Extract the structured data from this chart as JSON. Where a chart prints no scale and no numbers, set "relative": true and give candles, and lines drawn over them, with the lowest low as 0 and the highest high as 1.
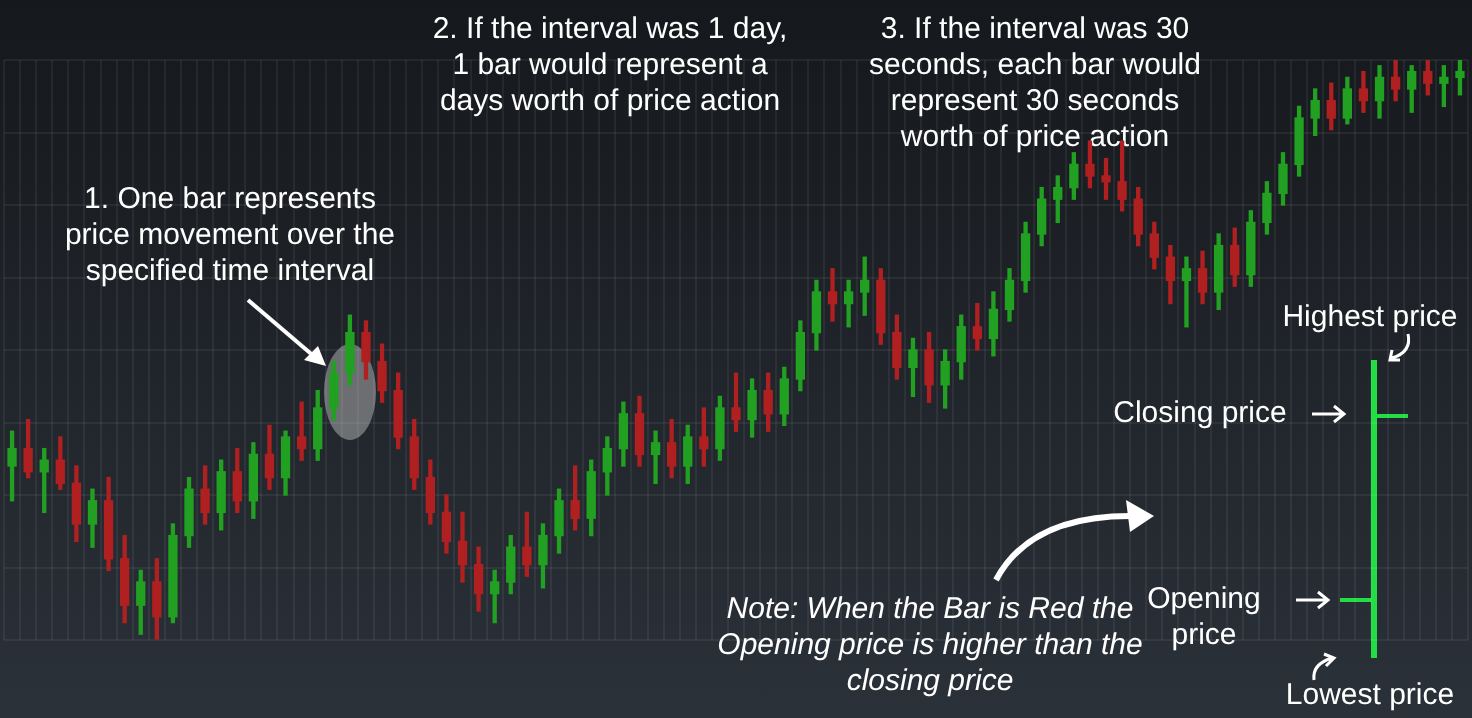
{
  "chart_data": {
    "type": "candlestick",
    "relative": true,
    "grid": true,
    "tick_labels": false,
    "categories": [
      null,
      null,
      null,
      null,
      null,
      null,
      null,
      null,
      null,
      null,
      null,
      null,
      null,
      null,
      null,
      null,
      null,
      null,
      null,
      null,
      null,
      null,
      null,
      null,
      null,
      null,
      null,
      null,
      null,
      null,
      null,
      null,
      null,
      null,
      null,
      null,
      null,
      null,
      null,
      null,
      null,
      null,
      null,
      null,
      null,
      null,
      null,
      null,
      null,
      null,
      null,
      null,
      null,
      null,
      null,
      null,
      null,
      null,
      null,
      null,
      null,
      null,
      null,
      null,
      null,
      null,
      null,
      null,
      null,
      null,
      null,
      null,
      null,
      null,
      null,
      null,
      null,
      null,
      null,
      null,
      null,
      null,
      null,
      null,
      null,
      null,
      null,
      null,
      null,
      null,
      null
    ],
    "ohlc": [
      [
        0.3,
        0.36,
        0.24,
        0.33
      ],
      [
        0.33,
        0.38,
        0.28,
        0.29
      ],
      [
        0.29,
        0.33,
        0.22,
        0.31
      ],
      [
        0.31,
        0.35,
        0.26,
        0.27
      ],
      [
        0.27,
        0.3,
        0.17,
        0.2
      ],
      [
        0.2,
        0.26,
        0.16,
        0.24
      ],
      [
        0.24,
        0.28,
        0.12,
        0.14
      ],
      [
        0.14,
        0.18,
        0.03,
        0.06
      ],
      [
        0.06,
        0.12,
        0.01,
        0.1
      ],
      [
        0.1,
        0.14,
        0,
        0.04
      ],
      [
        0.04,
        0.2,
        0.03,
        0.18
      ],
      [
        0.18,
        0.28,
        0.16,
        0.26
      ],
      [
        0.26,
        0.3,
        0.2,
        0.22
      ],
      [
        0.22,
        0.31,
        0.19,
        0.29
      ],
      [
        0.29,
        0.33,
        0.22,
        0.24
      ],
      [
        0.24,
        0.34,
        0.21,
        0.32
      ],
      [
        0.32,
        0.37,
        0.26,
        0.28
      ],
      [
        0.28,
        0.36,
        0.25,
        0.35
      ],
      [
        0.35,
        0.41,
        0.31,
        0.33
      ],
      [
        0.33,
        0.43,
        0.31,
        0.4
      ],
      [
        0.4,
        0.48,
        0.38,
        0.46
      ],
      [
        0.46,
        0.56,
        0.44,
        0.53
      ],
      [
        0.53,
        0.55,
        0.45,
        0.48
      ],
      [
        0.48,
        0.51,
        0.41,
        0.43
      ],
      [
        0.43,
        0.46,
        0.33,
        0.35
      ],
      [
        0.35,
        0.38,
        0.26,
        0.28
      ],
      [
        0.28,
        0.31,
        0.2,
        0.22
      ],
      [
        0.22,
        0.25,
        0.15,
        0.17
      ],
      [
        0.17,
        0.22,
        0.1,
        0.13
      ],
      [
        0.13,
        0.16,
        0.05,
        0.08
      ],
      [
        0.08,
        0.12,
        0.03,
        0.1
      ],
      [
        0.1,
        0.18,
        0.08,
        0.16
      ],
      [
        0.16,
        0.22,
        0.11,
        0.13
      ],
      [
        0.13,
        0.2,
        0.09,
        0.18
      ],
      [
        0.18,
        0.26,
        0.15,
        0.24
      ],
      [
        0.24,
        0.3,
        0.19,
        0.21
      ],
      [
        0.21,
        0.31,
        0.18,
        0.29
      ],
      [
        0.29,
        0.35,
        0.25,
        0.33
      ],
      [
        0.33,
        0.41,
        0.3,
        0.39
      ],
      [
        0.39,
        0.42,
        0.3,
        0.32
      ],
      [
        0.32,
        0.36,
        0.27,
        0.34
      ],
      [
        0.34,
        0.38,
        0.28,
        0.3
      ],
      [
        0.3,
        0.37,
        0.27,
        0.35
      ],
      [
        0.35,
        0.4,
        0.3,
        0.33
      ],
      [
        0.33,
        0.42,
        0.31,
        0.4
      ],
      [
        0.4,
        0.46,
        0.36,
        0.38
      ],
      [
        0.38,
        0.45,
        0.35,
        0.43
      ],
      [
        0.43,
        0.46,
        0.36,
        0.39
      ],
      [
        0.39,
        0.47,
        0.37,
        0.45
      ],
      [
        0.45,
        0.55,
        0.43,
        0.53
      ],
      [
        0.53,
        0.62,
        0.5,
        0.6
      ],
      [
        0.6,
        0.64,
        0.55,
        0.58
      ],
      [
        0.58,
        0.62,
        0.54,
        0.6
      ],
      [
        0.6,
        0.66,
        0.56,
        0.62
      ],
      [
        0.62,
        0.64,
        0.51,
        0.53
      ],
      [
        0.53,
        0.56,
        0.45,
        0.47
      ],
      [
        0.47,
        0.52,
        0.42,
        0.5
      ],
      [
        0.5,
        0.53,
        0.41,
        0.44
      ],
      [
        0.44,
        0.5,
        0.4,
        0.48
      ],
      [
        0.48,
        0.56,
        0.45,
        0.54
      ],
      [
        0.54,
        0.58,
        0.5,
        0.52
      ],
      [
        0.52,
        0.6,
        0.49,
        0.57
      ],
      [
        0.57,
        0.64,
        0.55,
        0.62
      ],
      [
        0.62,
        0.72,
        0.6,
        0.7
      ],
      [
        0.7,
        0.78,
        0.68,
        0.76
      ],
      [
        0.76,
        0.8,
        0.72,
        0.78
      ],
      [
        0.78,
        0.84,
        0.76,
        0.82
      ],
      [
        0.82,
        0.86,
        0.78,
        0.8
      ],
      [
        0.8,
        0.83,
        0.76,
        0.79
      ],
      [
        0.79,
        0.86,
        0.74,
        0.76
      ],
      [
        0.76,
        0.78,
        0.68,
        0.7
      ],
      [
        0.7,
        0.72,
        0.64,
        0.66
      ],
      [
        0.66,
        0.68,
        0.58,
        0.62
      ],
      [
        0.62,
        0.66,
        0.54,
        0.64
      ],
      [
        0.64,
        0.67,
        0.58,
        0.6
      ],
      [
        0.6,
        0.7,
        0.57,
        0.68
      ],
      [
        0.68,
        0.71,
        0.61,
        0.63
      ],
      [
        0.63,
        0.74,
        0.61,
        0.72
      ],
      [
        0.72,
        0.79,
        0.7,
        0.77
      ],
      [
        0.77,
        0.84,
        0.75,
        0.82
      ],
      [
        0.82,
        0.92,
        0.8,
        0.9
      ],
      [
        0.9,
        0.95,
        0.87,
        0.93
      ],
      [
        0.93,
        0.96,
        0.88,
        0.9
      ],
      [
        0.9,
        0.97,
        0.89,
        0.95
      ],
      [
        0.95,
        0.98,
        0.91,
        0.93
      ],
      [
        0.93,
        0.99,
        0.9,
        0.97
      ],
      [
        0.97,
        1,
        0.93,
        0.95
      ],
      [
        0.95,
        0.99,
        0.91,
        0.98
      ],
      [
        0.98,
        1,
        0.94,
        0.96
      ],
      [
        0.96,
        0.99,
        0.92,
        0.97
      ],
      [
        0.97,
        1,
        0.94,
        0.98
      ]
    ],
    "colors": [
      "#22a022",
      "#b02020",
      "#22a022",
      "#b02020",
      "#b02020",
      "#22a022",
      "#b02020",
      "#b02020",
      "#22a022",
      "#b02020",
      "#22a022",
      "#22a022",
      "#b02020",
      "#22a022",
      "#b02020",
      "#22a022",
      "#b02020",
      "#22a022",
      "#b02020",
      "#22a022",
      "#22a022",
      "#22a022",
      "#b02020",
      "#b02020",
      "#b02020",
      "#b02020",
      "#b02020",
      "#b02020",
      "#b02020",
      "#b02020",
      "#22a022",
      "#22a022",
      "#b02020",
      "#22a022",
      "#22a022",
      "#b02020",
      "#22a022",
      "#22a022",
      "#22a022",
      "#b02020",
      "#22a022",
      "#b02020",
      "#22a022",
      "#b02020",
      "#22a022",
      "#b02020",
      "#22a022",
      "#b02020",
      "#22a022",
      "#22a022",
      "#22a022",
      "#b02020",
      "#22a022",
      "#22a022",
      "#b02020",
      "#b02020",
      "#22a022",
      "#b02020",
      "#22a022",
      "#22a022",
      "#b02020",
      "#22a022",
      "#22a022",
      "#22a022",
      "#22a022",
      "#22a022",
      "#22a022",
      "#b02020",
      "#b02020",
      "#b02020",
      "#b02020",
      "#b02020",
      "#b02020",
      "#22a022",
      "#b02020",
      "#22a022",
      "#b02020",
      "#22a022",
      "#22a022",
      "#22a022",
      "#22a022",
      "#22a022",
      "#b02020",
      "#22a022",
      "#b02020",
      "#22a022",
      "#b02020",
      "#22a022",
      "#b02020",
      "#22a022",
      "#22a022"
    ],
    "annotations": [
      "1. One bar represents price movement over the specified time interval",
      "2. If the interval was 1 day, 1 bar would represent a days worth of price action",
      "3. If the interval was 30 seconds, each bar would represent 30 seconds worth of price action",
      "Note: When the Bar is Red the Opening price is higher than the closing price",
      "Highest price",
      "Closing price",
      "Opening price",
      "Lowest price"
    ]
  }
}
